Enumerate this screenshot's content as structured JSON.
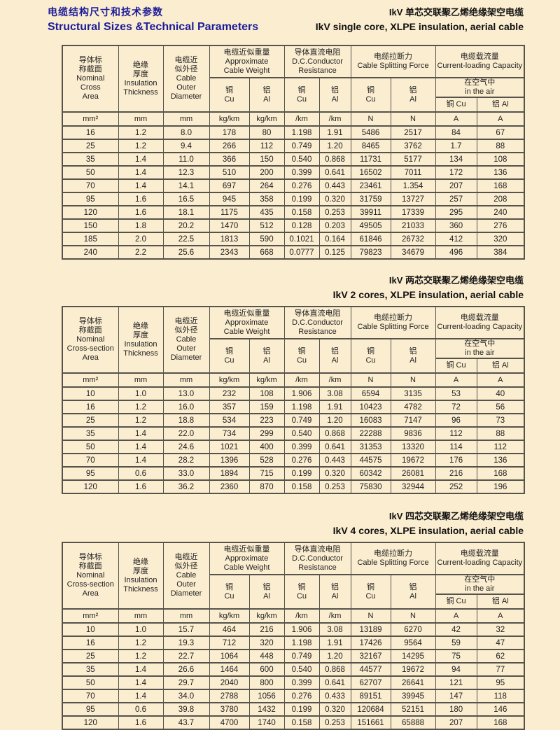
{
  "page_header": {
    "title_zh": "电缆结构尺寸和技术参数",
    "title_en": "Structural Sizes &Technical Parameters"
  },
  "tables": [
    {
      "title_zh": "IkV 单芯交联聚乙烯绝缘架空电缆",
      "title_en": "IkV  single core, XLPE insulation, aerial cable",
      "header": {
        "nominal": "导体标\n称截面\nNominal\nCross\nArea",
        "insulation": "绝缘\n厚度\nInsulation\nThickness",
        "diameter": "电缆近\n似外径\nCable\nOuter\nDiameter",
        "weight": "电缆近似重量\nApproximate\nCable Weight",
        "resistance": "导体直流电阻\nD.C.Conductor\nResistance",
        "splitting": "电缆拉断力\nCable Splitting Force",
        "capacity": "电缆载流量\nCurrent-loading Capacity",
        "air": "在空气中\nin the air",
        "cu": "铜\nCu",
        "al": "铝\nAl",
        "cu_inline": "铜  Cu",
        "al_inline": "铝  Al"
      },
      "units": [
        "mm²",
        "mm",
        "mm",
        "kg/km",
        "kg/km",
        "/km",
        "/km",
        "N",
        "N",
        "A",
        "A"
      ],
      "rows": [
        [
          "16",
          "1.2",
          "8.0",
          "178",
          "80",
          "1.198",
          "1.91",
          "5486",
          "2517",
          "84",
          "67"
        ],
        [
          "25",
          "1.2",
          "9.4",
          "266",
          "112",
          "0.749",
          "1.20",
          "8465",
          "3762",
          "1.7",
          "88"
        ],
        [
          "35",
          "1.4",
          "11.0",
          "366",
          "150",
          "0.540",
          "0.868",
          "11731",
          "5177",
          "134",
          "108"
        ],
        [
          "50",
          "1.4",
          "12.3",
          "510",
          "200",
          "0.399",
          "0.641",
          "16502",
          "7011",
          "172",
          "136"
        ],
        [
          "70",
          "1.4",
          "14.1",
          "697",
          "264",
          "0.276",
          "0.443",
          "23461",
          "1.354",
          "207",
          "168"
        ],
        [
          "95",
          "1.6",
          "16.5",
          "945",
          "358",
          "0.199",
          "0.320",
          "31759",
          "13727",
          "257",
          "208"
        ],
        [
          "120",
          "1.6",
          "18.1",
          "1175",
          "435",
          "0.158",
          "0.253",
          "39911",
          "17339",
          "295",
          "240"
        ],
        [
          "150",
          "1.8",
          "20.2",
          "1470",
          "512",
          "0.128",
          "0.203",
          "49505",
          "21033",
          "360",
          "276"
        ],
        [
          "185",
          "2.0",
          "22.5",
          "1813",
          "590",
          "0.1021",
          "0.164",
          "61846",
          "26732",
          "412",
          "320"
        ],
        [
          "240",
          "2.2",
          "25.6",
          "2343",
          "668",
          "0.0777",
          "0.125",
          "79823",
          "34679",
          "496",
          "384"
        ]
      ]
    },
    {
      "title_zh": "IkV 两芯交联聚乙烯绝缘架空电缆",
      "title_en": "IkV  2 cores, XLPE insulation, aerial cable",
      "header": {
        "nominal": "导体标\n称截面\nNominal\nCross-section\nArea",
        "insulation": "绝缘\n厚度\nInsulation\nThickness",
        "diameter": "电缆近\n似外径\nCable\nOuter\nDiameter",
        "weight": "电缆近似重量\nApproximate\nCable Weight",
        "resistance": "导体直流电阻\nD.C.Conductor\nResistance",
        "splitting": "电缆拉断力\nCable Splitting Force",
        "capacity": "电缆载流量\nCurrent-loading Capacity",
        "air": "在空气中\nin the air",
        "cu": "铜\nCu",
        "al": "铝\nAl",
        "cu_inline": "铜  Cu",
        "al_inline": "铝  Al"
      },
      "units": [
        "mm²",
        "mm",
        "mm",
        "kg/km",
        "kg/km",
        "/km",
        "/km",
        "N",
        "N",
        "A",
        "A"
      ],
      "rows": [
        [
          "10",
          "1.0",
          "13.0",
          "232",
          "108",
          "1.906",
          "3.08",
          "6594",
          "3135",
          "53",
          "40"
        ],
        [
          "16",
          "1.2",
          "16.0",
          "357",
          "159",
          "1.198",
          "1.91",
          "10423",
          "4782",
          "72",
          "56"
        ],
        [
          "25",
          "1.2",
          "18.8",
          "534",
          "223",
          "0.749",
          "1.20",
          "16083",
          "7147",
          "96",
          "73"
        ],
        [
          "35",
          "1.4",
          "22.0",
          "734",
          "299",
          "0.540",
          "0.868",
          "22288",
          "9836",
          "112",
          "88"
        ],
        [
          "50",
          "1.4",
          "24.6",
          "1021",
          "400",
          "0.399",
          "0.641",
          "31353",
          "13320",
          "114",
          "112"
        ],
        [
          "70",
          "1.4",
          "28.2",
          "1396",
          "528",
          "0.276",
          "0.443",
          "44575",
          "19672",
          "176",
          "136"
        ],
        [
          "95",
          "0.6",
          "33.0",
          "1894",
          "715",
          "0.199",
          "0.320",
          "60342",
          "26081",
          "216",
          "168"
        ],
        [
          "120",
          "1.6",
          "36.2",
          "2360",
          "870",
          "0.158",
          "0.253",
          "75830",
          "32944",
          "252",
          "196"
        ]
      ]
    },
    {
      "title_zh": "IkV 四芯交联聚乙烯绝缘架空电缆",
      "title_en": "IkV  4 cores, XLPE insulation, aerial cable",
      "header": {
        "nominal": "导体标\n称截面\nNominal\nCross-section\nArea",
        "insulation": "绝缘\n厚度\nInsulation\nThickness",
        "diameter": "电缆近\n似外径\nCable\nOuter\nDiameter",
        "weight": "电缆近似重量\nApproximate\nCable Weight",
        "resistance": "导体直流电阻\nD.C.Conductor\nResistance",
        "splitting": "电缆拉断力\nCable Splitting Force",
        "capacity": "电缆载流量\nCurrent-loading Capacity",
        "air": "在空气中\nin the air",
        "cu": "铜\nCu",
        "al": "铝\nAl",
        "cu_inline": "铜  Cu",
        "al_inline": "铝  Al"
      },
      "units": [
        "mm²",
        "mm",
        "mm",
        "kg/km",
        "kg/km",
        "/km",
        "/km",
        "N",
        "N",
        "A",
        "A"
      ],
      "rows": [
        [
          "10",
          "1.0",
          "15.7",
          "464",
          "216",
          "1.906",
          "3.08",
          "13189",
          "6270",
          "42",
          "32"
        ],
        [
          "16",
          "1.2",
          "19.3",
          "712",
          "320",
          "1.198",
          "1.91",
          "17426",
          "9564",
          "59",
          "47"
        ],
        [
          "25",
          "1.2",
          "22.7",
          "1064",
          "448",
          "0.749",
          "1.20",
          "32167",
          "14295",
          "75",
          "62"
        ],
        [
          "35",
          "1.4",
          "26.6",
          "1464",
          "600",
          "0.540",
          "0.868",
          "44577",
          "19672",
          "94",
          "77"
        ],
        [
          "50",
          "1.4",
          "29.7",
          "2040",
          "800",
          "0.399",
          "0.641",
          "62707",
          "26641",
          "121",
          "95"
        ],
        [
          "70",
          "1.4",
          "34.0",
          "2788",
          "1056",
          "0.276",
          "0.433",
          "89151",
          "39945",
          "147",
          "118"
        ],
        [
          "95",
          "0.6",
          "39.8",
          "3780",
          "1432",
          "0.199",
          "0.320",
          "120684",
          "52151",
          "180",
          "146"
        ],
        [
          "120",
          "1.6",
          "43.7",
          "4700",
          "1740",
          "0.158",
          "0.253",
          "151661",
          "65888",
          "207",
          "168"
        ]
      ]
    }
  ],
  "colors": {
    "background": "#FBEDD0",
    "brand_title": "#1C1C99",
    "grid_line": "#55534B",
    "text": "#1F1F1F"
  }
}
